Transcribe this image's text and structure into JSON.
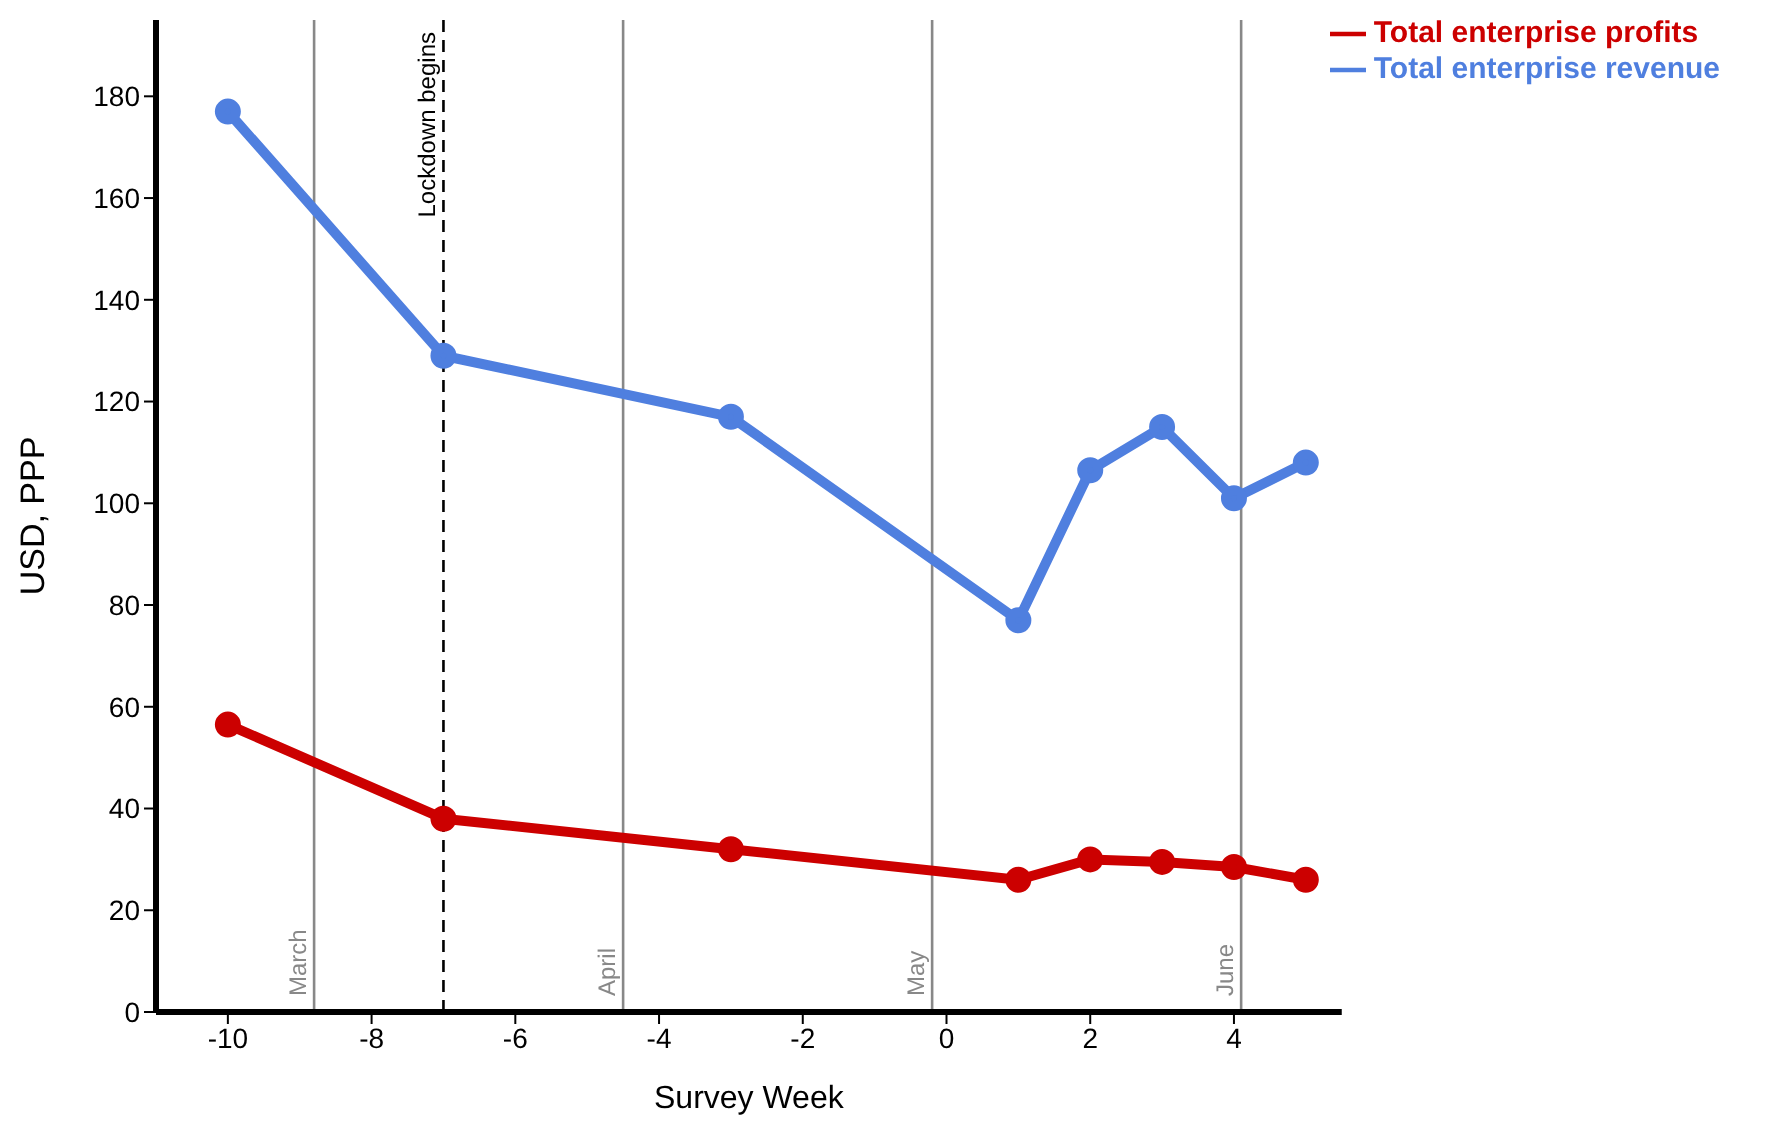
{
  "chart_data": {
    "type": "line",
    "xlabel": "Survey Week",
    "ylabel": "USD, PPP",
    "x": [
      -10,
      -7,
      -3,
      1,
      2,
      3,
      4,
      5
    ],
    "series": [
      {
        "name": "Total enterprise revenue",
        "color": "#4f7fdf",
        "values": [
          177,
          129,
          117,
          77,
          106.5,
          115,
          101,
          108
        ]
      },
      {
        "name": "Total enterprise profits",
        "color": "#cc0000",
        "values": [
          56.5,
          38,
          32,
          26,
          30,
          29.5,
          28.5,
          26
        ]
      }
    ],
    "xlim": [
      -11,
      5.5
    ],
    "xticks": [
      -10,
      -8,
      -6,
      -4,
      -2,
      0,
      2,
      4
    ],
    "ylim": [
      0,
      195
    ],
    "yticks": [
      0,
      20,
      40,
      60,
      80,
      100,
      120,
      140,
      160,
      180
    ],
    "ref_lines": [
      {
        "axis": "x",
        "value": -8.8,
        "label": "March",
        "color": "#888888",
        "line_style": "solid"
      },
      {
        "axis": "x",
        "value": -7,
        "label": "Lockdown begins",
        "color": "#000000",
        "line_style": "dashed"
      },
      {
        "axis": "x",
        "value": -4.5,
        "label": "April",
        "color": "#888888",
        "line_style": "solid"
      },
      {
        "axis": "x",
        "value": -0.2,
        "label": "May",
        "color": "#888888",
        "line_style": "solid"
      },
      {
        "axis": "x",
        "value": 4.1,
        "label": "June",
        "color": "#888888",
        "line_style": "solid"
      }
    ],
    "grid": false,
    "legend": "top right",
    "marker": "circle",
    "line_style": "solid"
  }
}
